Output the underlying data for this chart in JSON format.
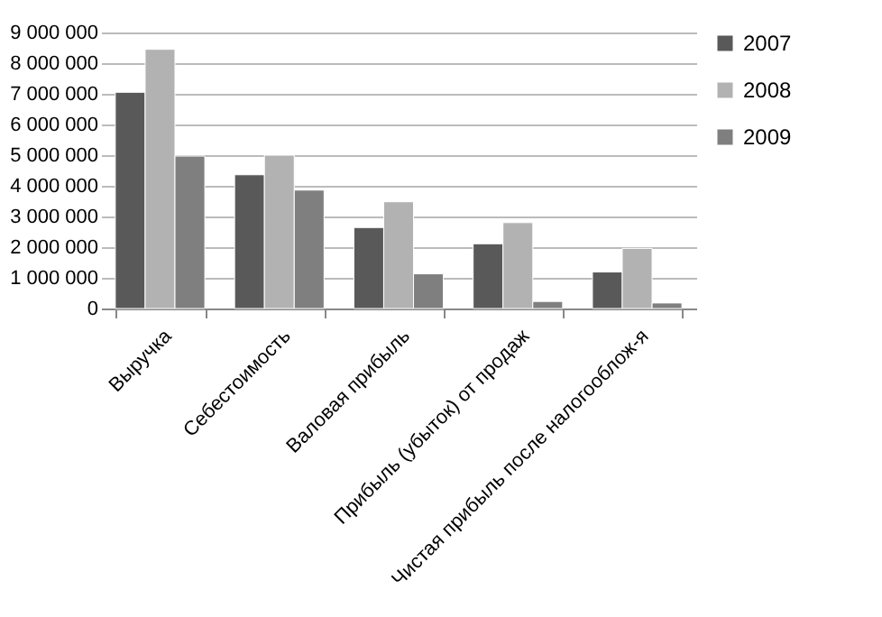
{
  "chart_data": {
    "type": "bar",
    "categories": [
      "Выручка",
      "Себестоимость",
      "Валовая прибыль",
      "Прибыль (убыток) от продаж",
      "Чистая прибыль после налогооблож-я"
    ],
    "series": [
      {
        "name": "2007",
        "color": "#595959",
        "values": [
          7050000,
          4360000,
          2640000,
          2110000,
          1190000
        ]
      },
      {
        "name": "2008",
        "color": "#b2b2b2",
        "values": [
          8450000,
          5000000,
          3480000,
          2800000,
          1960000
        ]
      },
      {
        "name": "2009",
        "color": "#7f7f7f",
        "values": [
          4970000,
          3860000,
          1130000,
          230000,
          180000
        ]
      }
    ],
    "ylim": [
      0,
      9000000
    ],
    "yticks": [
      {
        "value": 0,
        "label": "0"
      },
      {
        "value": 1000000,
        "label": "1 000 000"
      },
      {
        "value": 2000000,
        "label": "2 000 000"
      },
      {
        "value": 3000000,
        "label": "3 000 000"
      },
      {
        "value": 4000000,
        "label": "4 000 000"
      },
      {
        "value": 5000000,
        "label": "5 000 000"
      },
      {
        "value": 6000000,
        "label": "6 000 000"
      },
      {
        "value": 7000000,
        "label": "7 000 000"
      },
      {
        "value": 8000000,
        "label": "8 000 000"
      },
      {
        "value": 9000000,
        "label": "9 000 000"
      }
    ],
    "grid": "y",
    "legend": "right"
  }
}
